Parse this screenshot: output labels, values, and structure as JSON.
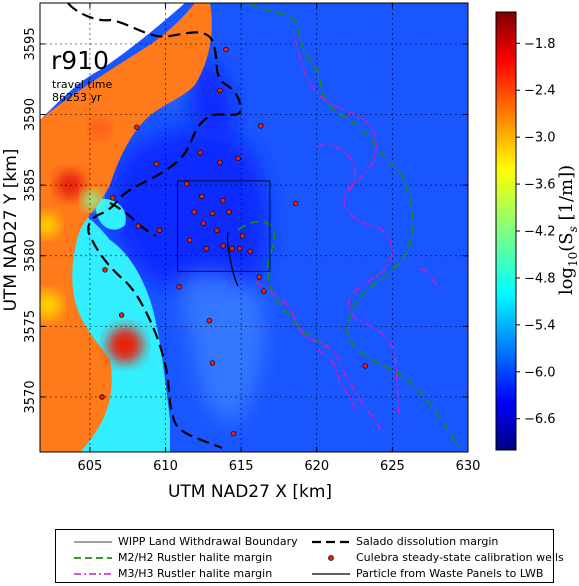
{
  "figure": {
    "run_label": "r910",
    "travel_time_label": "travel time",
    "travel_time_value": "86253 yr"
  },
  "axes": {
    "xlabel": "UTM NAD27 X [km]",
    "ylabel": "UTM NAD27  Y [km]",
    "xticks": [
      605,
      610,
      615,
      620,
      625,
      630
    ],
    "yticks": [
      3570,
      3575,
      3580,
      3585,
      3590,
      3595
    ],
    "xlim": [
      601.7,
      630
    ],
    "ylim": [
      3566.1,
      3597.9
    ]
  },
  "colorbar": {
    "label": "log10(Ss [1/m])",
    "label_main": "log",
    "label_sub": "10",
    "label_rest": "(S",
    "label_sub2": "s",
    "label_tail": " [1/m])",
    "ticks": [
      -1.8,
      -2.4,
      -3.0,
      -3.6,
      -4.2,
      -4.8,
      -5.4,
      -6.0,
      -6.6
    ],
    "tick_labels": [
      "−1.8",
      "−2.4",
      "−3.0",
      "−3.6",
      "−4.2",
      "−4.8",
      "−5.4",
      "−6.0",
      "−6.6"
    ],
    "range": [
      -7.0,
      -1.4
    ],
    "colors": [
      "#00007f",
      "#0000ff",
      "#007fff",
      "#00ffff",
      "#7fff7f",
      "#ffff00",
      "#ff7f00",
      "#ff0000",
      "#7f0000"
    ]
  },
  "legend": {
    "items": [
      {
        "label": "WIPP Land Withdrawal Boundary",
        "style": "thin-solid",
        "color": "#000000"
      },
      {
        "label": "Salado dissolution margin",
        "style": "thick-dashed",
        "color": "#000000"
      },
      {
        "label": "M2/H2 Rustler halite margin",
        "style": "dashed",
        "color": "#008000"
      },
      {
        "label": "Culebra steady-state calibration wells",
        "style": "marker",
        "color": "#ff0000"
      },
      {
        "label": "M3/H3 Rustler halite margin",
        "style": "dash-dot",
        "color": "#bf00bf"
      },
      {
        "label": "Particle from Waste Panels to LWB",
        "style": "solid",
        "color": "#000000"
      }
    ]
  },
  "chart_data": {
    "type": "heatmap",
    "title": "",
    "xlabel": "UTM NAD27 X [km]",
    "ylabel": "UTM NAD27  Y [km]",
    "grid": true,
    "wipp_boundary": {
      "x": [
        610.8,
        616.9
      ],
      "y": [
        3578.9,
        3585.3
      ]
    },
    "calibration_wells": [
      {
        "x": 614.0,
        "y": 3594.6
      },
      {
        "x": 613.6,
        "y": 3591.7
      },
      {
        "x": 608.1,
        "y": 3589.1
      },
      {
        "x": 616.3,
        "y": 3589.2
      },
      {
        "x": 609.4,
        "y": 3586.5
      },
      {
        "x": 612.3,
        "y": 3587.3
      },
      {
        "x": 613.6,
        "y": 3586.6
      },
      {
        "x": 614.8,
        "y": 3586.9
      },
      {
        "x": 611.4,
        "y": 3585.1
      },
      {
        "x": 606.5,
        "y": 3584.1
      },
      {
        "x": 612.4,
        "y": 3584.2
      },
      {
        "x": 613.8,
        "y": 3583.9
      },
      {
        "x": 618.6,
        "y": 3583.7
      },
      {
        "x": 611.9,
        "y": 3583.1
      },
      {
        "x": 613.1,
        "y": 3583.0
      },
      {
        "x": 614.2,
        "y": 3583.1
      },
      {
        "x": 608.2,
        "y": 3582.1
      },
      {
        "x": 609.6,
        "y": 3581.8
      },
      {
        "x": 612.5,
        "y": 3582.3
      },
      {
        "x": 613.4,
        "y": 3581.8
      },
      {
        "x": 615.1,
        "y": 3581.4
      },
      {
        "x": 611.6,
        "y": 3581.1
      },
      {
        "x": 612.7,
        "y": 3580.5
      },
      {
        "x": 613.8,
        "y": 3580.7
      },
      {
        "x": 614.4,
        "y": 3580.5
      },
      {
        "x": 614.9,
        "y": 3580.5
      },
      {
        "x": 615.6,
        "y": 3580.3
      },
      {
        "x": 606.0,
        "y": 3579.0
      },
      {
        "x": 616.2,
        "y": 3578.5
      },
      {
        "x": 610.9,
        "y": 3577.8
      },
      {
        "x": 616.5,
        "y": 3577.5
      },
      {
        "x": 612.9,
        "y": 3575.4
      },
      {
        "x": 607.1,
        "y": 3575.8
      },
      {
        "x": 613.1,
        "y": 3572.4
      },
      {
        "x": 623.2,
        "y": 3572.2
      },
      {
        "x": 605.8,
        "y": 3570.0
      },
      {
        "x": 614.5,
        "y": 3567.4
      }
    ]
  }
}
